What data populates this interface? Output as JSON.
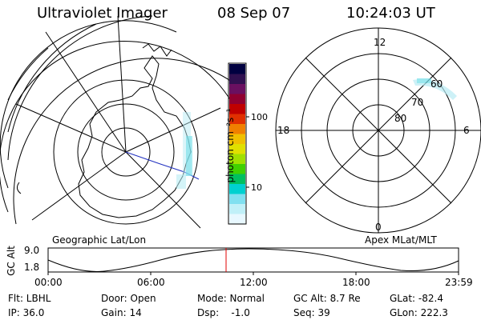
{
  "header": {
    "instrument": "Ultraviolet Imager",
    "date": "08 Sep 07",
    "time": "10:24:03 UT"
  },
  "colorbar": {
    "unit_label": "photon cm⁻²s⁻¹",
    "ticks": [
      "100",
      "10"
    ],
    "colors": [
      "#000040",
      "#301050",
      "#6a1060",
      "#900030",
      "#c00000",
      "#e03000",
      "#f08000",
      "#f0c000",
      "#e0e000",
      "#a0e000",
      "#40d000",
      "#00c060",
      "#00d0d0",
      "#80e0f0",
      "#c0f0f8",
      "#e8f8ff"
    ]
  },
  "left_map": {
    "caption": "Geographic Lat/Lon"
  },
  "right_map": {
    "caption": "Apex MLat/MLT",
    "mlt_labels": {
      "top": "12",
      "left": "18",
      "right": "6",
      "bottom": "0"
    },
    "lat_labels": [
      "60",
      "70",
      "80"
    ]
  },
  "timeline": {
    "ylabel": "GC Alt",
    "ymax": "9.0",
    "ymin": "1.8",
    "ticks": [
      "00:00",
      "06:00",
      "12:00",
      "18:00",
      "23:59"
    ],
    "marker_color": "#e00000"
  },
  "status": {
    "flt": "Flt: LBHL",
    "ip": "IP: 36.0",
    "door": "Door: Open",
    "gain": "Gain: 14",
    "mode": "Mode: Normal",
    "dsp": "Dsp:    -1.0",
    "gc_alt": "GC Alt: 8.7 Re",
    "seq": "Seq: 39",
    "glat": "GLat: -82.4",
    "glon": "GLon: 222.3"
  }
}
